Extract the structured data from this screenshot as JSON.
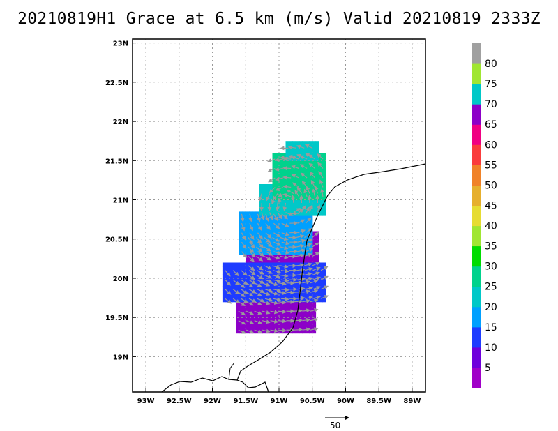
{
  "title": "20210819H1 Grace at 6.5 km (m/s) Valid 20210819 2333Z",
  "map": {
    "lat_labels": [
      "23N",
      "22.5N",
      "22N",
      "21.5N",
      "21N",
      "20.5N",
      "20N",
      "19.5N",
      "19N"
    ],
    "lon_labels": [
      "93W",
      "92.5W",
      "92W",
      "91.5W",
      "91W",
      "90.5W",
      "90W",
      "89.5W",
      "89W"
    ],
    "lat_range": [
      18.55,
      23.05
    ],
    "lon_range": [
      -93.2,
      -88.8
    ],
    "grid": "dotted",
    "coastline": "black"
  },
  "colorbar": {
    "labels": [
      "5",
      "10",
      "15",
      "20",
      "25",
      "30",
      "35",
      "40",
      "45",
      "50",
      "55",
      "60",
      "65",
      "70",
      "75",
      "80"
    ],
    "colors": [
      "#a000c8",
      "#6e00dc",
      "#1e3cff",
      "#00a0ff",
      "#00c8c8",
      "#00d28c",
      "#00dc00",
      "#a0e632",
      "#e6dc32",
      "#e6af2d",
      "#f08228",
      "#fa3c3c",
      "#f00082",
      "#8c00c8",
      "#00c8c8",
      "#a0e632",
      "#a0a0a0"
    ]
  },
  "reference_vector": {
    "label": "50",
    "units": "m/s"
  },
  "wind_regions": [
    {
      "lat": [
        19.3,
        20.0
      ],
      "lon": [
        -91.65,
        -90.45
      ],
      "speed_class": "65-70"
    },
    {
      "lat": [
        20.0,
        20.6
      ],
      "lon": [
        -91.5,
        -90.4
      ],
      "speed_class": "65-70"
    },
    {
      "lat": [
        19.7,
        20.2
      ],
      "lon": [
        -91.85,
        -90.3
      ],
      "speed_class": "10-15"
    },
    {
      "lat": [
        20.3,
        20.85
      ],
      "lon": [
        -91.6,
        -90.5
      ],
      "speed_class": "15-20"
    },
    {
      "lat": [
        20.8,
        21.2
      ],
      "lon": [
        -91.3,
        -90.3
      ],
      "speed_class": "20-25"
    },
    {
      "lat": [
        21.0,
        21.6
      ],
      "lon": [
        -91.1,
        -90.3
      ],
      "speed_class": "25-30"
    },
    {
      "lat": [
        21.5,
        21.75
      ],
      "lon": [
        -90.9,
        -90.4
      ],
      "speed_class": "20-25"
    }
  ]
}
